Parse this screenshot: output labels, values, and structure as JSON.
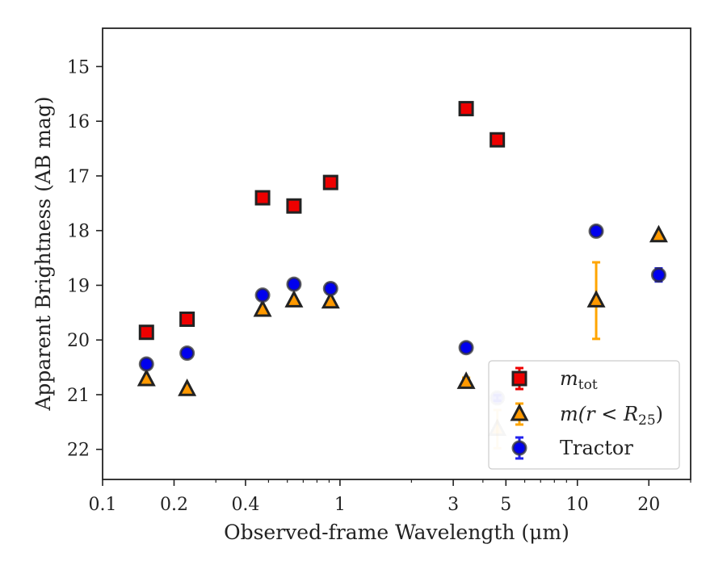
{
  "chart_data": {
    "type": "scatter",
    "title": "",
    "xlabel": "Observed-frame Wavelength (μm)",
    "ylabel": "Apparent Brightness (AB mag)",
    "xscale": "log",
    "xlim": [
      0.1,
      30
    ],
    "ylim": [
      22.55,
      14.3
    ],
    "y_inverted": true,
    "x_ticks": [
      {
        "value": 0.1,
        "label": "0.1"
      },
      {
        "value": 0.2,
        "label": "0.2"
      },
      {
        "value": 0.4,
        "label": "0.4"
      },
      {
        "value": 1,
        "label": "1"
      },
      {
        "value": 3,
        "label": "3"
      },
      {
        "value": 5,
        "label": "5"
      },
      {
        "value": 10,
        "label": "10"
      },
      {
        "value": 20,
        "label": "20"
      }
    ],
    "y_ticks": [
      {
        "value": 15,
        "label": "15"
      },
      {
        "value": 16,
        "label": "16"
      },
      {
        "value": 17,
        "label": "17"
      },
      {
        "value": 18,
        "label": "18"
      },
      {
        "value": 19,
        "label": "19"
      },
      {
        "value": 20,
        "label": "20"
      },
      {
        "value": 21,
        "label": "21"
      },
      {
        "value": 22,
        "label": "22"
      }
    ],
    "grid": false,
    "legend_position": "lower-right",
    "series": [
      {
        "name": "m_tot",
        "legend_base": "m",
        "legend_sub": "tot",
        "legend_rest": "",
        "marker": "square",
        "color": "#ee0000",
        "edge_color": "#222222",
        "error_color": "#ee0000",
        "points": [
          {
            "x": 0.153,
            "y": 19.86,
            "err": 0
          },
          {
            "x": 0.227,
            "y": 19.62,
            "err": 0
          },
          {
            "x": 0.472,
            "y": 17.4,
            "err": 0
          },
          {
            "x": 0.64,
            "y": 17.55,
            "err": 0
          },
          {
            "x": 0.913,
            "y": 17.12,
            "err": 0
          },
          {
            "x": 3.4,
            "y": 15.77,
            "err": 0
          },
          {
            "x": 4.6,
            "y": 16.34,
            "err": 0
          }
        ]
      },
      {
        "name": "m(r < R_25)",
        "legend_base": "m(r < R",
        "legend_sub": "25",
        "legend_rest": ")",
        "marker": "triangle",
        "color": "#ff9900",
        "edge_color": "#222222",
        "error_color": "#ffa500",
        "points": [
          {
            "x": 0.153,
            "y": 20.72,
            "err": 0
          },
          {
            "x": 0.227,
            "y": 20.9,
            "err": 0
          },
          {
            "x": 0.472,
            "y": 19.45,
            "err": 0
          },
          {
            "x": 0.64,
            "y": 19.28,
            "err": 0
          },
          {
            "x": 0.913,
            "y": 19.3,
            "err": 0
          },
          {
            "x": 3.4,
            "y": 20.77,
            "err": 0.08
          },
          {
            "x": 4.6,
            "y": 21.63,
            "err": 0.35,
            "faded": true
          },
          {
            "x": 12.0,
            "y": 19.28,
            "err": 0.7
          },
          {
            "x": 22.0,
            "y": 18.09,
            "err": 0
          }
        ]
      },
      {
        "name": "Tractor",
        "legend_base": "Tractor",
        "legend_sub": "",
        "legend_rest": "",
        "marker": "circle",
        "color": "#0000ee",
        "edge_color": "#333333",
        "error_color": "#2222ee",
        "points": [
          {
            "x": 0.153,
            "y": 20.44,
            "err": 0.05
          },
          {
            "x": 0.227,
            "y": 20.24,
            "err": 0.04
          },
          {
            "x": 0.472,
            "y": 19.18,
            "err": 0.07
          },
          {
            "x": 0.64,
            "y": 18.98,
            "err": 0.07
          },
          {
            "x": 0.913,
            "y": 19.06,
            "err": 0.09
          },
          {
            "x": 3.4,
            "y": 20.14,
            "err": 0.05
          },
          {
            "x": 4.6,
            "y": 21.06,
            "err": 0.05,
            "faded": true
          },
          {
            "x": 12.0,
            "y": 18.01,
            "err": 0
          },
          {
            "x": 22.0,
            "y": 18.81,
            "err": 0.12
          }
        ]
      }
    ]
  }
}
